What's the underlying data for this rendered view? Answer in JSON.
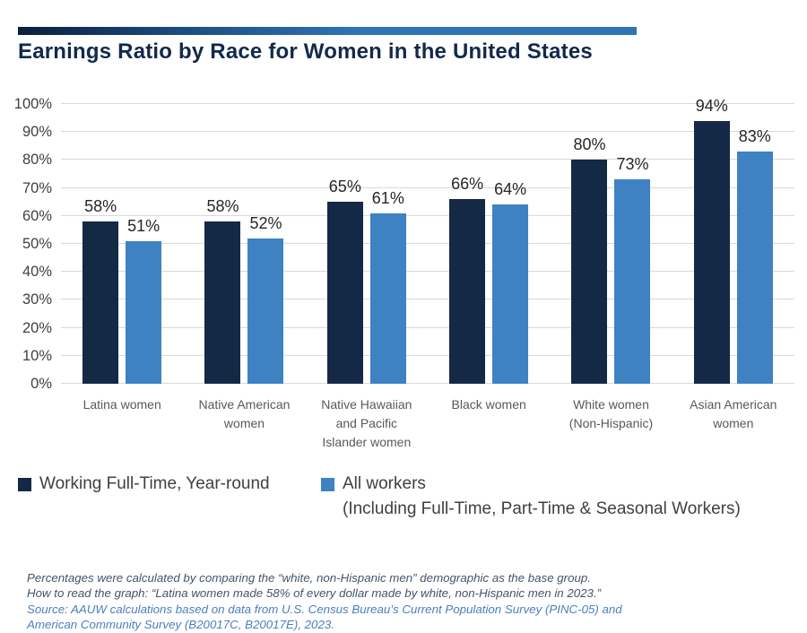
{
  "header": {
    "title": "Earnings Ratio by Race for Women in the United States"
  },
  "accent": {
    "stripe_gradient_start": "#0b1f3d",
    "stripe_gradient_end": "#2e75b6",
    "title_color": "#12294b"
  },
  "chart_data": {
    "type": "bar",
    "title": "Earnings Ratio by Race for Women in the United States",
    "categories": [
      "Latina women",
      "Native American women",
      "Native Hawaiian and Pacific Islander women",
      "Black women",
      "White women (Non-Hispanic)",
      "Asian American women"
    ],
    "series": [
      {
        "name": "Working Full-Time, Year-round",
        "color": "#142945",
        "values": [
          58,
          58,
          65,
          66,
          80,
          94
        ]
      },
      {
        "name": "All workers (Including Full-Time, Part-Time & Seasonal Workers)",
        "color": "#3e82c4",
        "values": [
          51,
          52,
          61,
          64,
          73,
          83
        ]
      }
    ],
    "value_label_suffix": "%",
    "xlabel": "",
    "ylabel": "",
    "ylim": [
      0,
      100
    ],
    "ytick_step": 10,
    "yticks": [
      "0%",
      "10%",
      "20%",
      "30%",
      "40%",
      "50%",
      "60%",
      "70%",
      "80%",
      "90%",
      "100%"
    ],
    "grid": true,
    "gridline_color": "#d9d9d9",
    "legend_position": "bottom"
  },
  "legend": {
    "item1": {
      "label": "Working Full-Time, Year-round",
      "color": "#142945"
    },
    "item2": {
      "label": "All workers",
      "sublabel": "(Including Full-Time, Part-Time & Seasonal Workers)",
      "color": "#3e82c4"
    }
  },
  "footnotes": {
    "line1": "Percentages were calculated by comparing the “white, non-Hispanic men” demographic as the base group.",
    "line2": "How to read the graph: “Latina women made 58% of every dollar made by white, non-Hispanic men in 2023.”",
    "source1": "Source: AAUW calculations based on data from U.S. Census Bureau’s Current Population Survey (PINC-05) and",
    "source2": "American Community Survey (B20017C, B20017E), 2023."
  }
}
